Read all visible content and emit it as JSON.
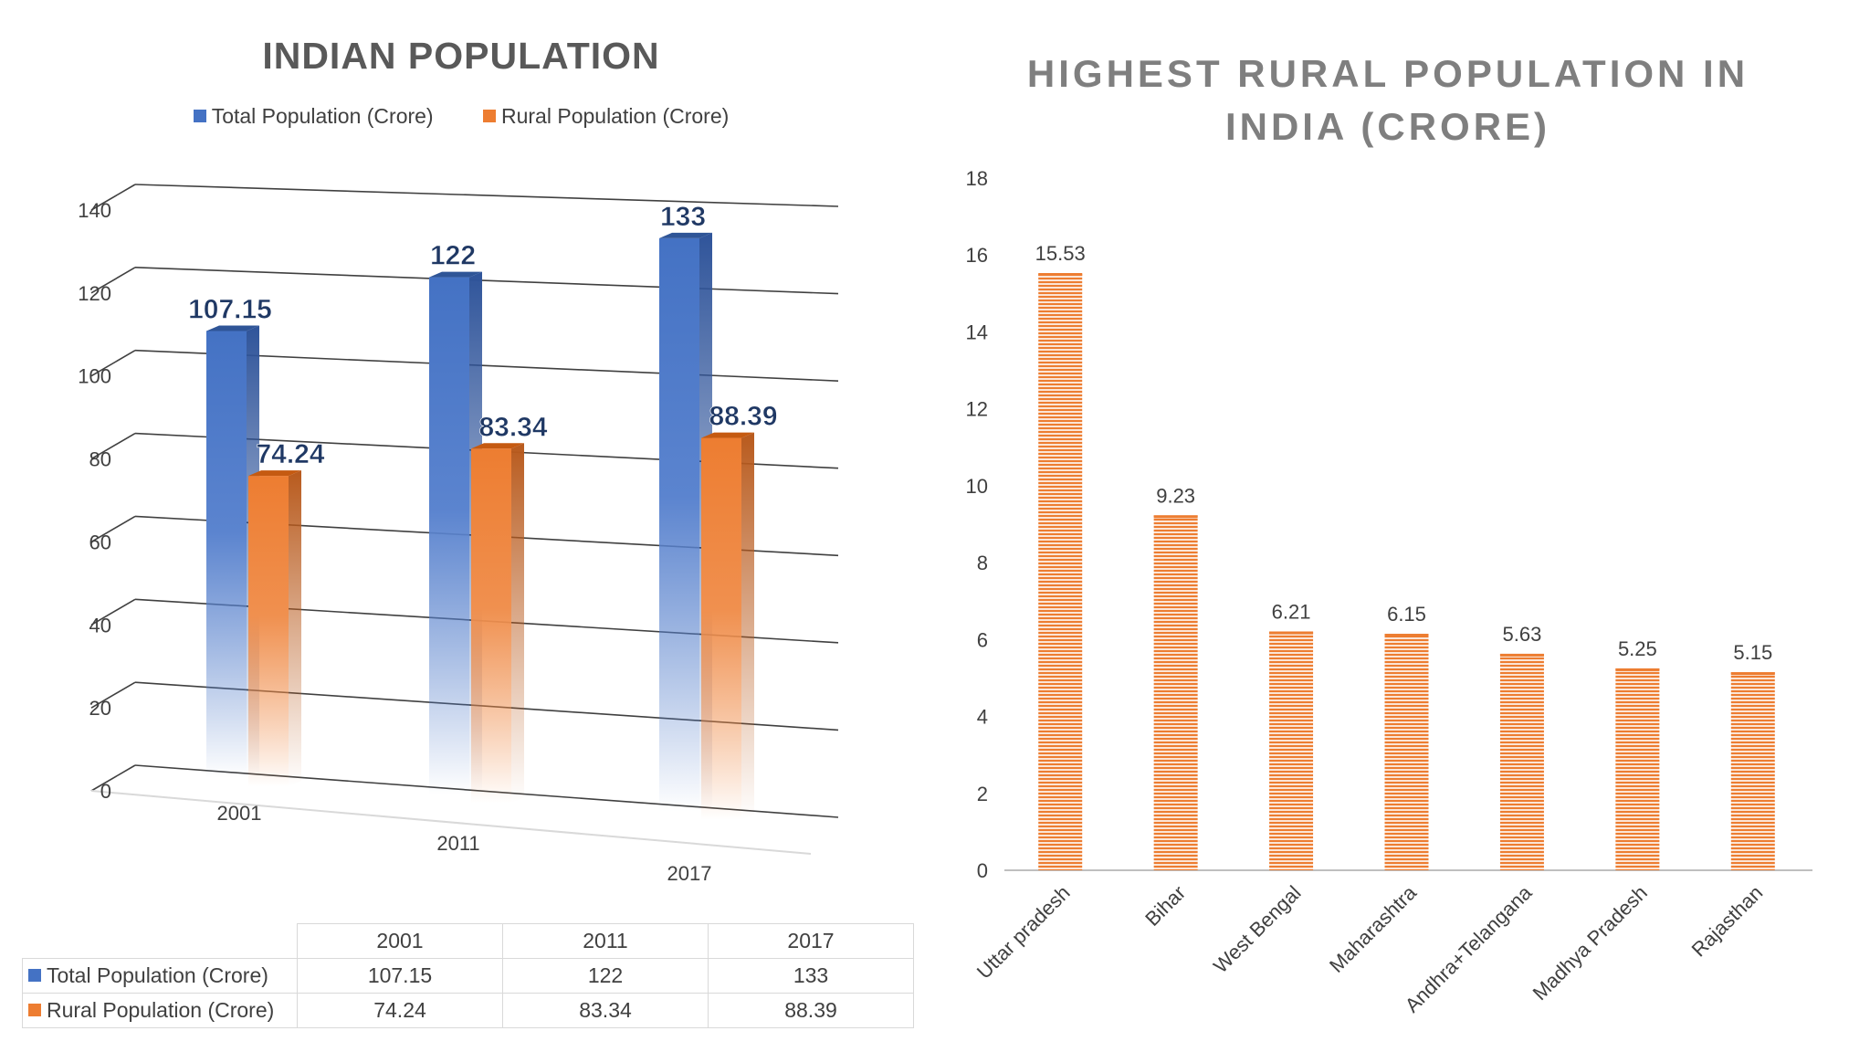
{
  "chart_data": [
    {
      "type": "bar",
      "title": "INDIAN POPULATION",
      "categories": [
        "2001",
        "2011",
        "2017"
      ],
      "series": [
        {
          "name": "Total Population (Crore)",
          "values": [
            107.15,
            122,
            133
          ],
          "labels": [
            "107.15",
            "122",
            "133"
          ],
          "color": "#4472c4"
        },
        {
          "name": "Rural Population (Crore)",
          "values": [
            74.24,
            83.34,
            88.39
          ],
          "labels": [
            "74.24",
            "83.34",
            "88.39"
          ],
          "color": "#ed7d31"
        }
      ],
      "yticks": [
        "0",
        "20",
        "40",
        "60",
        "80",
        "100",
        "120",
        "140"
      ],
      "ylim": [
        0,
        140
      ],
      "grid": true,
      "legend": "top",
      "style": "3d-clustered-column",
      "data_table": true
    },
    {
      "type": "bar",
      "title": "HIGHEST  RURAL POPULATION IN INDIA  (CRORE)",
      "categories": [
        "Uttar pradesh",
        "Bihar",
        "West Bengal",
        "Maharashtra",
        "Andhra+Telangana",
        "Madhya Pradesh",
        "Rajasthan"
      ],
      "values": [
        15.53,
        9.23,
        6.21,
        6.15,
        5.63,
        5.25,
        5.15
      ],
      "labels": [
        "15.53",
        "9.23",
        "6.21",
        "6.15",
        "5.63",
        "5.25",
        "5.15"
      ],
      "yticks": [
        "0",
        "2",
        "4",
        "6",
        "8",
        "10",
        "12",
        "14",
        "16",
        "18"
      ],
      "ylim": [
        0,
        18
      ],
      "grid": false,
      "color": "#ed7d31",
      "pattern": "horizontal-stripes"
    }
  ]
}
